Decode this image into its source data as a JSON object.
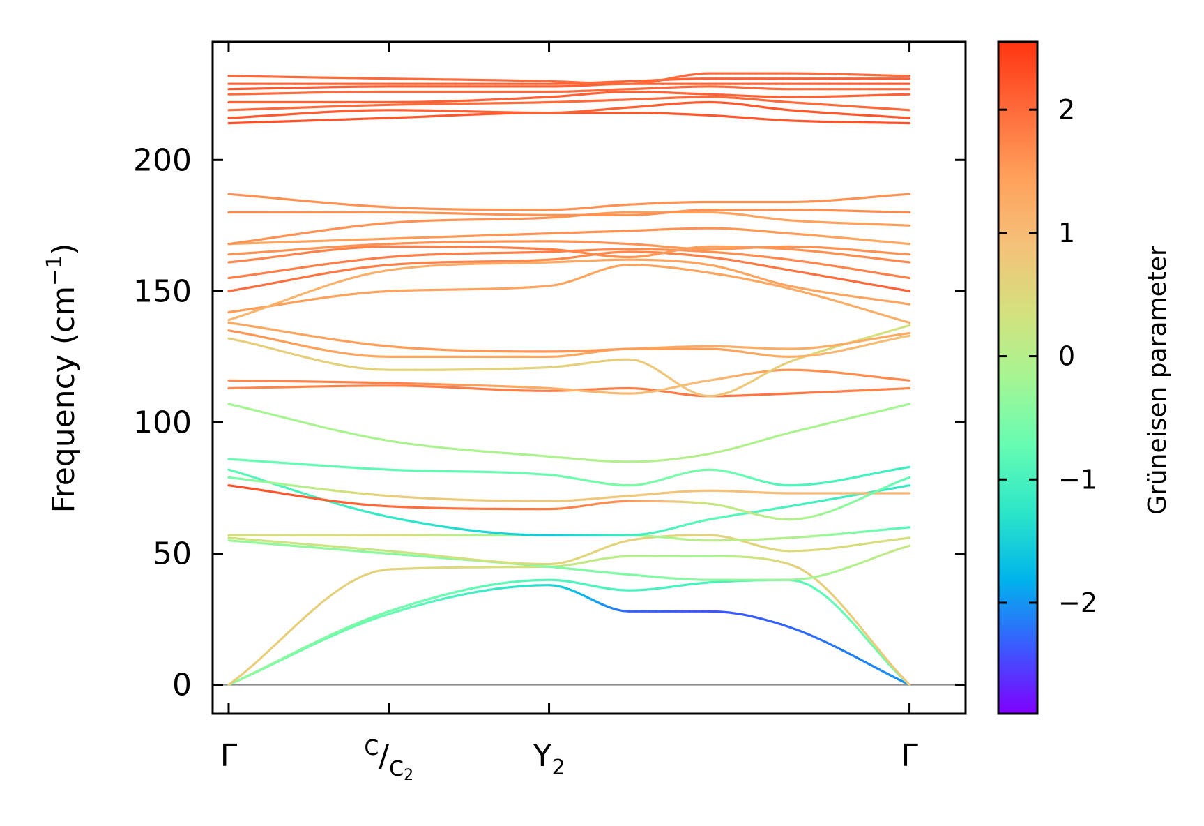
{
  "chart_data": {
    "type": "line",
    "title": "",
    "ylabel": {
      "prefix": "Frequency (cm",
      "sup": "−1",
      "suffix": ")"
    },
    "xlabel": "",
    "ylim": [
      -11,
      245
    ],
    "yticks": [
      0,
      50,
      100,
      150,
      200
    ],
    "ytick_labels": [
      "0",
      "50",
      "100",
      "150",
      "200"
    ],
    "xlim": [
      -0.1,
      4.6
    ],
    "x_labels": [
      {
        "x": 0,
        "main": "Γ",
        "sub": "",
        "sup": ""
      },
      {
        "x": 1,
        "main": "/",
        "sup": "C",
        "sub": "C",
        "sub2": "2"
      },
      {
        "x": 2,
        "main": "Y",
        "sub": "2",
        "sup": ""
      },
      {
        "x": 4.25,
        "main": "Γ",
        "sub": "",
        "sup": ""
      }
    ],
    "zero_line": 0,
    "colorbar": {
      "label": "Grüneisen parameter",
      "range": [
        -2.9,
        2.55
      ],
      "ticks": [
        2,
        1,
        0,
        -1,
        -2
      ],
      "tick_labels": [
        "2",
        "1",
        "0",
        "−1",
        "−2"
      ],
      "colors": [
        "#7f00ff",
        "#3a5bff",
        "#00b4eb",
        "#2ce6c8",
        "#66fcb2",
        "#a6f593",
        "#d5e07d",
        "#f5c07a",
        "#ffa05a",
        "#ff6a3b",
        "#ff3410"
      ]
    },
    "series": [
      {
        "name": "acoustic-1",
        "x": [
          0,
          1,
          2,
          2.5,
          3,
          3.5,
          4.25
        ],
        "y": [
          0,
          27,
          38,
          28,
          28,
          22,
          0
        ],
        "g": [
          -0.6,
          -0.7,
          -1.4,
          -2.3,
          -2.4,
          -2.3,
          -2.0
        ]
      },
      {
        "name": "acoustic-2",
        "x": [
          0,
          1,
          2,
          2.5,
          3,
          3.5,
          4.25
        ],
        "y": [
          0,
          28,
          40,
          36,
          39,
          40,
          0
        ],
        "g": [
          -0.3,
          -0.6,
          -0.9,
          -1.0,
          -1.0,
          -0.9,
          -0.5
        ]
      },
      {
        "name": "acoustic-3",
        "x": [
          0,
          1,
          2,
          2.5,
          3,
          3.5,
          4.25
        ],
        "y": [
          0,
          44,
          45,
          49,
          49,
          46,
          0
        ],
        "g": [
          0.7,
          0.6,
          0.3,
          0.0,
          -0.2,
          0.6,
          0.8
        ]
      },
      {
        "name": "band-4",
        "x": [
          0,
          1,
          2,
          2.5,
          3,
          3.5,
          4.25
        ],
        "y": [
          55,
          50,
          45,
          42,
          40,
          40,
          53
        ],
        "g": [
          -0.3,
          -0.4,
          -0.5,
          -0.5,
          -0.4,
          -0.3,
          0.2
        ]
      },
      {
        "name": "band-5",
        "x": [
          0,
          1,
          2,
          2.5,
          3,
          3.5,
          4.25
        ],
        "y": [
          56,
          51,
          46,
          55,
          57,
          51,
          56
        ],
        "g": [
          0.3,
          0.2,
          0.5,
          0.6,
          0.6,
          0.5,
          0.4
        ]
      },
      {
        "name": "band-6",
        "x": [
          0,
          1,
          2,
          2.5,
          3,
          3.5,
          4.25
        ],
        "y": [
          57,
          57,
          57,
          57,
          55,
          56,
          60
        ],
        "g": [
          0.4,
          0.5,
          -0.5,
          -0.3,
          0.1,
          0.0,
          -0.9
        ]
      },
      {
        "name": "band-7",
        "x": [
          0,
          1,
          2,
          2.5,
          3,
          3.5,
          4.25
        ],
        "y": [
          82,
          64,
          57,
          57,
          63,
          68,
          76
        ],
        "g": [
          -0.8,
          -1.2,
          -1.6,
          -1.1,
          -0.8,
          -1.0,
          -1.2
        ]
      },
      {
        "name": "band-8",
        "x": [
          0,
          1,
          2,
          2.5,
          3,
          3.5,
          4.25
        ],
        "y": [
          79,
          72,
          70,
          72,
          74,
          73,
          73
        ],
        "g": [
          -0.6,
          0.7,
          0.8,
          0.8,
          0.9,
          1.0,
          1.1
        ]
      },
      {
        "name": "band-9",
        "x": [
          0,
          1,
          2,
          2.5,
          3,
          3.5,
          4.25
        ],
        "y": [
          76,
          68,
          67,
          70,
          69,
          63,
          79
        ],
        "g": [
          2.3,
          2.0,
          1.8,
          1.6,
          0.2,
          0.0,
          -0.8
        ]
      },
      {
        "name": "band-10",
        "x": [
          0,
          1,
          2,
          2.5,
          3,
          3.5,
          4.25
        ],
        "y": [
          86,
          82,
          80,
          76,
          82,
          76,
          83
        ],
        "g": [
          -0.7,
          -0.8,
          -0.7,
          -0.5,
          -0.6,
          -0.9,
          -1.1
        ]
      },
      {
        "name": "band-11",
        "x": [
          0,
          1,
          2,
          2.5,
          3,
          3.5,
          4.25
        ],
        "y": [
          107,
          93,
          87,
          85,
          88,
          96,
          107
        ],
        "g": [
          -0.2,
          -0.1,
          -0.1,
          0.0,
          0.0,
          -0.1,
          -0.2
        ]
      },
      {
        "name": "band-12",
        "x": [
          0,
          1,
          2,
          2.5,
          3,
          3.5,
          4.25
        ],
        "y": [
          113,
          114,
          112,
          113,
          110,
          111,
          113
        ],
        "g": [
          1.7,
          1.8,
          1.8,
          1.8,
          1.9,
          1.9,
          1.7
        ]
      },
      {
        "name": "band-13",
        "x": [
          0,
          1,
          2,
          2.5,
          3,
          3.5,
          4.25
        ],
        "y": [
          116,
          115,
          113,
          111,
          116,
          120,
          116
        ],
        "g": [
          1.7,
          1.8,
          1.2,
          1.0,
          1.0,
          1.6,
          1.7
        ]
      },
      {
        "name": "band-14",
        "x": [
          0,
          1,
          2,
          2.5,
          3,
          3.5,
          4.25
        ],
        "y": [
          132,
          120,
          121,
          124,
          110,
          123,
          137
        ],
        "g": [
          0.7,
          0.6,
          0.6,
          0.7,
          0.9,
          0.6,
          0.3
        ]
      },
      {
        "name": "band-15",
        "x": [
          0,
          1,
          2,
          2.5,
          3,
          3.5,
          4.25
        ],
        "y": [
          135,
          125,
          125,
          128,
          128,
          125,
          133
        ],
        "g": [
          1.6,
          1.3,
          1.3,
          1.4,
          1.5,
          1.2,
          0.9
        ]
      },
      {
        "name": "band-16",
        "x": [
          0,
          1,
          2,
          2.5,
          3,
          3.5,
          4.25
        ],
        "y": [
          138,
          129,
          127,
          128,
          129,
          128,
          134
        ],
        "g": [
          1.3,
          1.5,
          1.6,
          1.5,
          1.3,
          1.2,
          1.3
        ]
      },
      {
        "name": "band-17",
        "x": [
          0,
          1,
          2,
          2.5,
          3,
          3.5,
          4.25
        ],
        "y": [
          142,
          150,
          152,
          160,
          157,
          151,
          138
        ],
        "g": [
          1.5,
          1.4,
          1.4,
          1.4,
          1.4,
          1.3,
          1.2
        ]
      },
      {
        "name": "band-18",
        "x": [
          0,
          1,
          2,
          2.5,
          3,
          3.5,
          4.25
        ],
        "y": [
          139,
          158,
          161,
          162,
          160,
          152,
          145
        ],
        "g": [
          1.1,
          1.2,
          1.3,
          1.4,
          1.4,
          1.4,
          1.4
        ]
      },
      {
        "name": "band-19",
        "x": [
          0,
          1,
          2,
          2.5,
          3,
          3.5,
          4.25
        ],
        "y": [
          150,
          160,
          162,
          165,
          163,
          158,
          150
        ],
        "g": [
          2.0,
          1.8,
          1.7,
          1.7,
          1.8,
          1.9,
          2.1
        ]
      },
      {
        "name": "band-20",
        "x": [
          0,
          1,
          2,
          2.5,
          3,
          3.5,
          4.25
        ],
        "y": [
          155,
          163,
          165,
          166,
          165,
          162,
          155
        ],
        "g": [
          1.8,
          1.8,
          1.8,
          1.7,
          1.6,
          1.7,
          1.8
        ]
      },
      {
        "name": "band-21",
        "x": [
          0,
          1,
          2,
          2.5,
          3,
          3.5,
          4.25
        ],
        "y": [
          161,
          167,
          166,
          163,
          167,
          166,
          161
        ],
        "g": [
          1.7,
          1.8,
          1.8,
          1.6,
          1.4,
          1.6,
          1.7
        ]
      },
      {
        "name": "band-22",
        "x": [
          0,
          1,
          2,
          2.5,
          3,
          3.5,
          4.25
        ],
        "y": [
          164,
          168,
          169,
          168,
          166,
          167,
          164
        ],
        "g": [
          1.6,
          1.6,
          1.6,
          1.6,
          1.5,
          1.6,
          1.6
        ]
      },
      {
        "name": "band-23",
        "x": [
          0,
          1,
          2,
          2.5,
          3,
          3.5,
          4.25
        ],
        "y": [
          168,
          170,
          172,
          173,
          174,
          172,
          168
        ],
        "g": [
          1.3,
          1.5,
          1.6,
          1.6,
          1.6,
          1.5,
          1.3
        ]
      },
      {
        "name": "band-24",
        "x": [
          0,
          1,
          2,
          2.5,
          3,
          3.5,
          4.25
        ],
        "y": [
          168,
          176,
          178,
          180,
          180,
          177,
          175
        ],
        "g": [
          1.6,
          1.6,
          1.6,
          1.5,
          1.4,
          1.4,
          1.5
        ]
      },
      {
        "name": "band-25",
        "x": [
          0,
          1,
          2,
          2.5,
          3,
          3.5,
          4.25
        ],
        "y": [
          180,
          180,
          179,
          179,
          181,
          181,
          180
        ],
        "g": [
          1.7,
          1.6,
          1.6,
          1.6,
          1.6,
          1.6,
          1.7
        ]
      },
      {
        "name": "band-26",
        "x": [
          0,
          1,
          2,
          2.5,
          3,
          3.5,
          4.25
        ],
        "y": [
          187,
          182,
          181,
          183,
          184,
          184,
          187
        ],
        "g": [
          1.6,
          1.6,
          1.6,
          1.6,
          1.6,
          1.6,
          1.6
        ]
      },
      {
        "name": "band-27",
        "x": [
          0,
          1,
          2,
          2.5,
          3,
          3.5,
          4.25
        ],
        "y": [
          214,
          216,
          218,
          218,
          217,
          215,
          214
        ],
        "g": [
          2.3,
          2.2,
          2.2,
          2.2,
          2.2,
          2.2,
          2.3
        ]
      },
      {
        "name": "band-28",
        "x": [
          0,
          1,
          2,
          2.5,
          3,
          3.5,
          4.25
        ],
        "y": [
          216,
          219,
          218,
          220,
          222,
          219,
          216
        ],
        "g": [
          2.2,
          2.1,
          2.1,
          2.1,
          2.2,
          2.2,
          2.2
        ]
      },
      {
        "name": "band-29",
        "x": [
          0,
          1,
          2,
          2.5,
          3,
          3.5,
          4.25
        ],
        "y": [
          219,
          221,
          222,
          223,
          224,
          222,
          219
        ],
        "g": [
          2.0,
          2.0,
          2.0,
          2.0,
          2.0,
          2.0,
          2.0
        ]
      },
      {
        "name": "band-30",
        "x": [
          0,
          1,
          2,
          2.5,
          3,
          3.5,
          4.25
        ],
        "y": [
          222,
          222,
          224,
          226,
          225,
          224,
          225
        ],
        "g": [
          2.1,
          2.1,
          2.1,
          2.1,
          2.1,
          2.1,
          2.1
        ]
      },
      {
        "name": "band-31",
        "x": [
          0,
          1,
          2,
          2.5,
          3,
          3.5,
          4.25
        ],
        "y": [
          225,
          226,
          226,
          227,
          228,
          227,
          227
        ],
        "g": [
          2.0,
          2.0,
          2.0,
          2.0,
          2.0,
          2.0,
          2.0
        ]
      },
      {
        "name": "band-32",
        "x": [
          0,
          1,
          2,
          2.5,
          3,
          3.5,
          4.25
        ],
        "y": [
          227,
          228,
          228,
          229,
          229,
          229,
          229
        ],
        "g": [
          2.2,
          2.1,
          2.1,
          2.1,
          2.1,
          2.1,
          2.2
        ]
      },
      {
        "name": "band-33",
        "x": [
          0,
          1,
          2,
          2.5,
          3,
          3.5,
          4.25
        ],
        "y": [
          229,
          229,
          229,
          230,
          231,
          231,
          231
        ],
        "g": [
          2.1,
          2.1,
          2.1,
          2.1,
          2.1,
          2.1,
          2.1
        ]
      },
      {
        "name": "band-34",
        "x": [
          0,
          1,
          2,
          2.5,
          3,
          3.5,
          4.25
        ],
        "y": [
          232,
          231,
          230,
          229,
          233,
          233,
          232
        ],
        "g": [
          2.0,
          2.0,
          2.0,
          2.0,
          2.0,
          2.0,
          2.0
        ]
      }
    ]
  }
}
